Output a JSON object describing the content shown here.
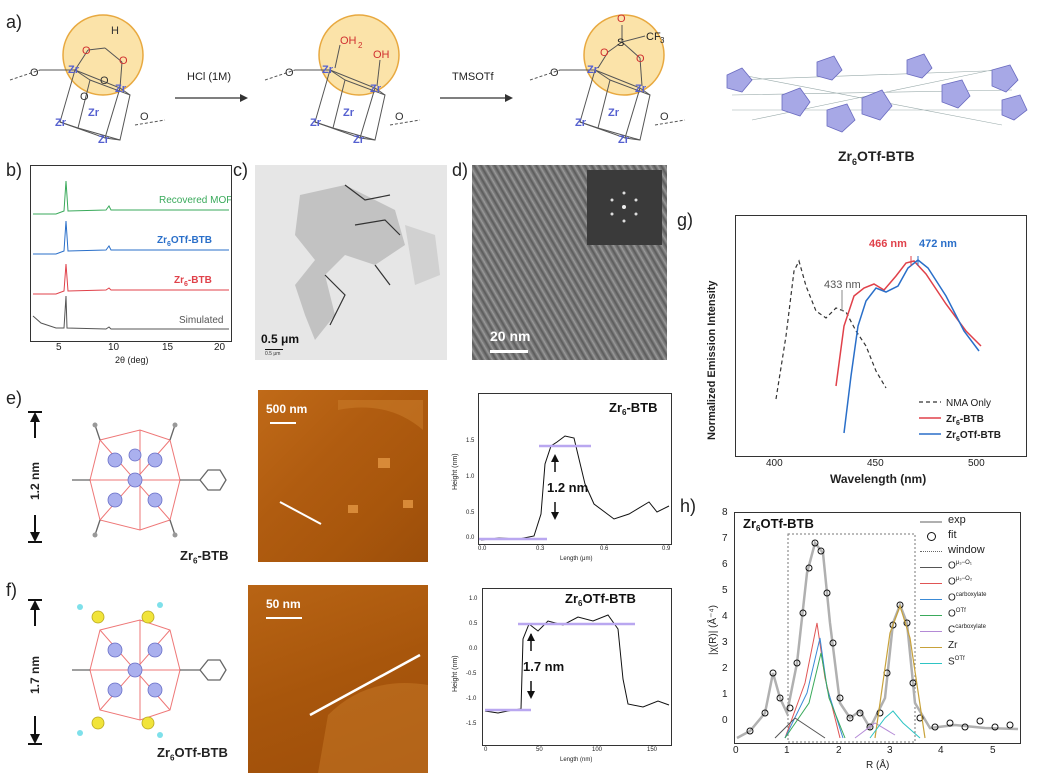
{
  "panels": {
    "a": "a)",
    "b": "b)",
    "c": "c)",
    "d": "d)",
    "e": "e)",
    "f": "f)",
    "g": "g)",
    "h": "h)"
  },
  "scheme": {
    "arrow1": "HCl (1M)",
    "arrow2": "TMSOTf",
    "atoms": {
      "zr": "Zr",
      "o": "O",
      "h": "H",
      "oh2": "OH",
      "oh2sub": "2",
      "oh": "OH",
      "s": "S",
      "cf3": "CF",
      "cf3sub": "3"
    },
    "framework_caption": "Zr",
    "framework_caption_sub": "6",
    "framework_caption_rest": "OTf-BTB"
  },
  "pxrd": {
    "xlabel": "2θ (deg)",
    "xticks": [
      "5",
      "10",
      "15",
      "20"
    ],
    "traces": [
      {
        "label": "Recovered MOF",
        "color": "#3aaa5b"
      },
      {
        "label_main": "Zr",
        "label_sub": "6",
        "label_rest": "OTf-BTB",
        "color": "#2a6fc9"
      },
      {
        "label_main": "Zr",
        "label_sub": "6",
        "label_rest": "-BTB",
        "color": "#e0414a"
      },
      {
        "label": "Simulated",
        "color": "#555555"
      }
    ]
  },
  "tem": {
    "scale": "0.5 μm",
    "tiny": "0.5 μm"
  },
  "hrtem": {
    "scale": "20 nm"
  },
  "emission": {
    "ylabel": "Normalized Emission Intensity",
    "xlabel": "Wavelength (nm)",
    "xticks": [
      "400",
      "450",
      "500"
    ],
    "peaks": {
      "p1": "433 nm",
      "p2": "466 nm",
      "p3": "472 nm"
    },
    "legend": [
      {
        "label": "NMA Only",
        "color": "#333333",
        "dash": true
      },
      {
        "label_main": "Zr",
        "label_sub": "6",
        "label_rest": "-BTB",
        "color": "#e0414a"
      },
      {
        "label_main": "Zr",
        "label_sub": "6",
        "label_rest": "OTf-BTB",
        "color": "#2a6fc9"
      }
    ]
  },
  "afm_e": {
    "height_label": "1.2 nm",
    "mol_name_main": "Zr",
    "mol_name_sub": "6",
    "mol_name_rest": "-BTB",
    "scale": "500 nm",
    "plot_title_main": "Zr",
    "plot_title_sub": "6",
    "plot_title_rest": "-BTB",
    "ylabel": "Height (nm)",
    "xlabel": "Length (μm)",
    "yticks": [
      "1.5",
      "1.0",
      "0.5",
      "0.0"
    ],
    "xticks": [
      "0.0",
      "0.3",
      "0.6",
      "0.9"
    ],
    "step": "1.2 nm"
  },
  "afm_f": {
    "height_label": "1.7 nm",
    "mol_name_main": "Zr",
    "mol_name_sub": "6",
    "mol_name_rest": "OTf-BTB",
    "scale": "50 nm",
    "plot_title_main": "Zr",
    "plot_title_sub": "6",
    "plot_title_rest": "OTf-BTB",
    "ylabel": "Height (nm)",
    "xlabel": "Length (nm)",
    "yticks": [
      "1.0",
      "0.5",
      "0.0",
      "-0.5",
      "-1.0",
      "-1.5"
    ],
    "xticks": [
      "0",
      "50",
      "100",
      "150"
    ],
    "step": "1.7 nm"
  },
  "exafs": {
    "title_main": "Zr",
    "title_sub": "6",
    "title_rest": "OTf-BTB",
    "ylabel": "|χ(R)| (Å⁻⁴)",
    "xlabel": "R (Å)",
    "yticks": [
      "0",
      "1",
      "2",
      "3",
      "4",
      "5",
      "6",
      "7",
      "8"
    ],
    "xticks": [
      "0",
      "1",
      "2",
      "3",
      "4",
      "5"
    ],
    "legend": [
      {
        "label": "exp",
        "color": "#b0b0b0"
      },
      {
        "label": "fit",
        "color": "#000000"
      },
      {
        "label": "window",
        "color": "#666666"
      },
      {
        "label_main": "O",
        "label_sup": "μ₃−O₁",
        "color": "#555555"
      },
      {
        "label_main": "O",
        "label_sup": "μ₃−O₂",
        "color": "#e05555"
      },
      {
        "label_main": "O",
        "label_sup": "carboxylate",
        "color": "#3a8ad6"
      },
      {
        "label_main": "O",
        "label_sup": "OTf",
        "color": "#3aaa5b"
      },
      {
        "label_main": "C",
        "label_sup": "carboxylate",
        "color": "#b48ad6"
      },
      {
        "label": "Zr",
        "color": "#c8a23a"
      },
      {
        "label_main": "S",
        "label_sup": "OTf",
        "color": "#2ec4c4"
      }
    ]
  },
  "chart_data": [
    {
      "type": "line",
      "title": "",
      "xlabel": "2θ (deg)",
      "xlim": [
        2,
        20
      ],
      "series": [
        {
          "name": "Recovered MOF",
          "x": [
            5.1,
            8.9
          ],
          "y": [
            1,
            0.25
          ]
        },
        {
          "name": "Zr6OTf-BTB",
          "x": [
            5.1,
            8.9
          ],
          "y": [
            1,
            0.25
          ]
        },
        {
          "name": "Zr6-BTB",
          "x": [
            5.1,
            8.9
          ],
          "y": [
            1,
            0.15
          ]
        },
        {
          "name": "Simulated",
          "x": [
            5.1,
            8.9
          ],
          "y": [
            1,
            0.1
          ]
        }
      ]
    },
    {
      "type": "line",
      "xlabel": "Wavelength (nm)",
      "ylabel": "Normalized Emission Intensity",
      "xlim": [
        380,
        510
      ],
      "series": [
        {
          "name": "NMA Only",
          "x": [
            400,
            412,
            420,
            428,
            433,
            440,
            450,
            460
          ],
          "y": [
            0.2,
            0.95,
            0.62,
            0.58,
            0.6,
            0.5,
            0.3,
            0.15
          ]
        },
        {
          "name": "Zr6-BTB",
          "x": [
            430,
            440,
            450,
            458,
            466,
            475,
            490,
            500
          ],
          "y": [
            0.3,
            0.72,
            0.8,
            0.79,
            0.95,
            0.85,
            0.65,
            0.55
          ]
        },
        {
          "name": "Zr6OTf-BTB",
          "x": [
            432,
            440,
            450,
            460,
            472,
            480,
            490,
            500
          ],
          "y": [
            0.0,
            0.5,
            0.78,
            0.79,
            0.95,
            0.88,
            0.7,
            0.55
          ]
        }
      ]
    },
    {
      "type": "line",
      "title": "Zr6-BTB",
      "xlabel": "Length (μm)",
      "ylabel": "Height (nm)",
      "xlim": [
        0,
        0.9
      ],
      "ylim": [
        -0.1,
        1.6
      ],
      "series": [
        {
          "name": "profile",
          "x": [
            0.0,
            0.1,
            0.2,
            0.3,
            0.35,
            0.4,
            0.45,
            0.5,
            0.55,
            0.6,
            0.7,
            0.8,
            0.85,
            0.9
          ],
          "y": [
            0.05,
            0.0,
            0.02,
            0.05,
            0.9,
            1.15,
            1.25,
            1.18,
            0.7,
            0.4,
            0.2,
            0.3,
            0.4,
            0.35
          ]
        }
      ]
    },
    {
      "type": "line",
      "title": "Zr6OTf-BTB",
      "xlabel": "Length (nm)",
      "ylabel": "Height (nm)",
      "xlim": [
        0,
        165
      ],
      "ylim": [
        -1.6,
        1.2
      ],
      "series": [
        {
          "name": "profile",
          "x": [
            0,
            20,
            30,
            35,
            40,
            60,
            80,
            100,
            110,
            120,
            125,
            140,
            160
          ],
          "y": [
            -1.1,
            -1.15,
            -1.1,
            0.4,
            0.5,
            0.55,
            0.6,
            0.65,
            0.6,
            0.5,
            -0.8,
            -0.9,
            -0.85
          ]
        }
      ]
    },
    {
      "type": "line",
      "title": "Zr6OTf-BTB",
      "xlabel": "R (Å)",
      "ylabel": "|χ(R)| (Å⁻⁴)",
      "xlim": [
        0,
        5.5
      ],
      "ylim": [
        0,
        8
      ],
      "series": [
        {
          "name": "exp",
          "x": [
            0.5,
            0.9,
            1.2,
            1.65,
            2.0,
            2.3,
            2.6,
            3.1,
            3.5,
            4.0,
            4.5,
            5.0
          ],
          "y": [
            0.3,
            2.5,
            1.0,
            6.9,
            3.0,
            0.6,
            0.3,
            4.7,
            0.9,
            0.3,
            0.4,
            0.3
          ]
        },
        {
          "name": "fit",
          "x": [
            0.5,
            0.9,
            1.2,
            1.65,
            2.0,
            2.3,
            2.6,
            3.1,
            3.5,
            4.0,
            4.5,
            5.0
          ],
          "y": [
            0.3,
            2.5,
            1.0,
            6.9,
            3.0,
            0.6,
            0.3,
            4.7,
            0.9,
            0.3,
            0.4,
            0.3
          ]
        },
        {
          "name": "Zr",
          "x": [
            2.6,
            3.1,
            3.6
          ],
          "y": [
            0.1,
            4.7,
            0.2
          ]
        }
      ]
    }
  ]
}
